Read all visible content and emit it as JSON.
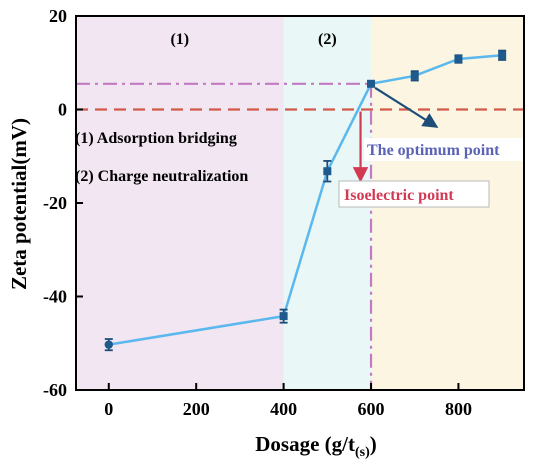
{
  "chart_data": {
    "type": "line",
    "title": "",
    "xlabel": "Dosage (g/t",
    "xlabel_sub": "(s)",
    "xlabel_close": ")",
    "ylabel": "Zeta potential(mV)",
    "xlim": [
      -75,
      950
    ],
    "ylim": [
      -60,
      20
    ],
    "xticks": [
      0,
      200,
      400,
      600,
      800
    ],
    "yticks": [
      -60,
      -40,
      -20,
      0,
      20
    ],
    "grid": false,
    "series": [
      {
        "color": "#5bb8ee",
        "points": [
          {
            "x": 0,
            "y": -50.3,
            "err": 1.2
          },
          {
            "x": 400,
            "y": -44.2,
            "err": 1.4
          },
          {
            "x": 500,
            "y": -13.2,
            "err": 2.2
          },
          {
            "x": 600,
            "y": 5.5,
            "err": 0.5
          },
          {
            "x": 700,
            "y": 7.2,
            "err": 1.0
          },
          {
            "x": 800,
            "y": 10.8,
            "err": 0.8
          },
          {
            "x": 900,
            "y": 11.6,
            "err": 1.0
          }
        ]
      }
    ],
    "regions": [
      {
        "x_from": -75,
        "x_to": 400,
        "label": "(1)",
        "color": "#f2e6f2"
      },
      {
        "x_from": 400,
        "x_to": 600,
        "label": "(2)",
        "color": "#e9f7f7"
      },
      {
        "x_from": 600,
        "x_to": 950,
        "label": "",
        "color": "#fbf5e2"
      }
    ],
    "reference_lines": [
      {
        "orientation": "horizontal",
        "value": 0,
        "style": "dashed",
        "color": "#d35a48"
      },
      {
        "orientation": "horizontal",
        "value": 5.5,
        "style": "dash-dot",
        "color": "#c27bc2"
      },
      {
        "orientation": "vertical",
        "value": 600,
        "style": "dash-dot",
        "color": "#c27bc2"
      }
    ],
    "legend_notes": [
      "(1) Adsorption bridging",
      "(2) Charge neutralization"
    ],
    "annotations": [
      {
        "text": "The optimum point",
        "color": "#5a63b4",
        "arrow_color": "#1d4d78",
        "x": 600,
        "y": 5.5
      },
      {
        "text": "Isoelectric point",
        "color": "#d23a54",
        "arrow_color": "#d23a54",
        "x": 576,
        "y": 0
      }
    ]
  }
}
